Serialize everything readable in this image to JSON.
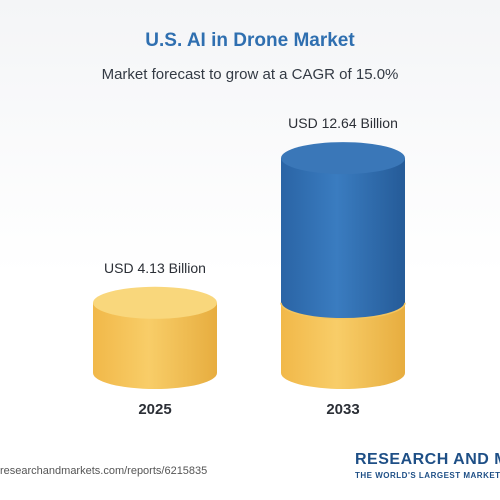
{
  "chart_data": {
    "type": "bar",
    "title": "U.S. AI in Drone Market",
    "subtitle": "Market forecast to grow at a CAGR of 15.0%",
    "categories": [
      "2025",
      "2033"
    ],
    "values": [
      4.13,
      12.64
    ],
    "value_labels": [
      "USD 4.13 Billion",
      "USD 12.64 Billion"
    ],
    "colors": {
      "base": "#f6c45a",
      "top": "#2f6fb0"
    }
  },
  "footer": {
    "url": "researchandmarkets.com/reports/6215835",
    "brand_name": "RESEARCH AND MARKETS",
    "brand_tagline": "THE WORLD'S LARGEST MARKET RESEARCH STORE"
  }
}
